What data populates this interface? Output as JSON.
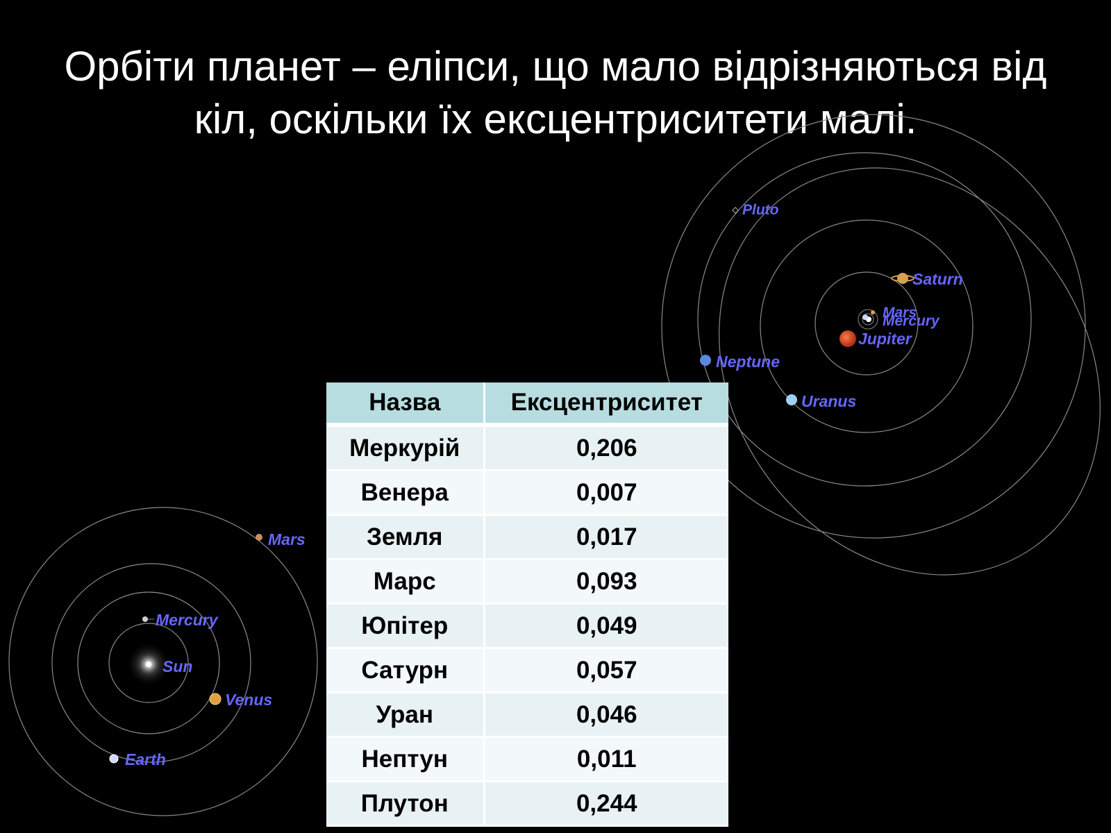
{
  "slide": {
    "title_line1": "Орбіти планет – еліпси, що мало відрізняються від",
    "title_line2": "кіл, оскільки їх ексцентриситети малі."
  },
  "inner_diagram": {
    "labels": {
      "sun": "Sun",
      "mercury": "Mercury",
      "venus": "Venus",
      "earth": "Earth",
      "mars": "Mars"
    }
  },
  "outer_diagram": {
    "labels": {
      "pluto": "Pluto",
      "saturn": "Saturn",
      "mars": "Mars",
      "mercury": "Mercury",
      "jupiter": "Jupiter",
      "neptune": "Neptune",
      "uranus": "Uranus"
    }
  },
  "table": {
    "headers": [
      "Назва",
      "Ексцентриситет"
    ],
    "rows": [
      [
        "Меркурій",
        "0,206"
      ],
      [
        "Венера",
        "0,007"
      ],
      [
        "Земля",
        "0,017"
      ],
      [
        "Марс",
        "0,093"
      ],
      [
        "Юпітер",
        "0,049"
      ],
      [
        "Сатурн",
        "0,057"
      ],
      [
        "Уран",
        "0,046"
      ],
      [
        "Нептун",
        "0,011"
      ],
      [
        "Плутон",
        "0,244"
      ]
    ]
  },
  "colors": {
    "background": "#000000",
    "title_text": "#ffffff",
    "planet_label": "#6666ff",
    "orbit_line": "#8a8a8a",
    "table_header_bg": "#b7dde1",
    "table_row_bg_a": "#e8f2f4",
    "table_row_bg_b": "#f3f8fa"
  }
}
